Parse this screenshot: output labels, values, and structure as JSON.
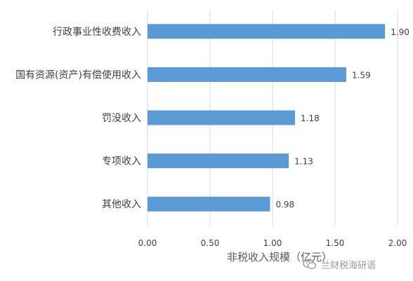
{
  "chart_data": {
    "type": "bar",
    "orientation": "horizontal",
    "categories": [
      "行政事业性收费收入",
      "国有资源(资产)有偿使用收入",
      "罚没收入",
      "专项收入",
      "其他收入"
    ],
    "values": [
      1.9,
      1.59,
      1.18,
      1.13,
      0.98
    ],
    "data_labels": [
      "1.90",
      "1.59",
      "1.18",
      "1.13",
      "0.98"
    ],
    "xlabel": "非税收入规模（亿元）",
    "xlim": [
      0,
      2.0
    ],
    "xticks": [
      "0.00",
      "0.50",
      "1.00",
      "1.50",
      "2.00"
    ],
    "xtick_values": [
      0,
      0.5,
      1.0,
      1.5,
      2.0
    ],
    "grid": "vertical",
    "colors": {
      "bar": "#5B9BD5",
      "grid": "#D9D9D9",
      "text": "#404040",
      "axis_title": "#595959"
    }
  },
  "watermark": {
    "icon": "wechat-logo-icon",
    "text": "兰财税海研语"
  }
}
